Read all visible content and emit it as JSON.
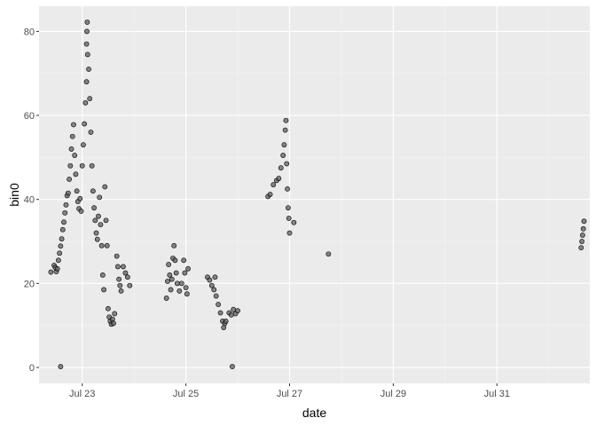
{
  "chart_data": {
    "type": "scatter",
    "title": "",
    "xlabel": "date",
    "ylabel": "bin0",
    "x_scale": "date",
    "xlim": [
      "2020-07-22 04:00",
      "2020-08-01 19:00"
    ],
    "ylim": [
      -3.8,
      86
    ],
    "x_ticks": [
      {
        "value": "2020-07-23 00:00",
        "label": "Jul 23"
      },
      {
        "value": "2020-07-25 00:00",
        "label": "Jul 25"
      },
      {
        "value": "2020-07-27 00:00",
        "label": "Jul 27"
      },
      {
        "value": "2020-07-29 00:00",
        "label": "Jul 29"
      },
      {
        "value": "2020-07-31 00:00",
        "label": "Jul 31"
      }
    ],
    "y_ticks": [
      {
        "value": 0,
        "label": "0"
      },
      {
        "value": 20,
        "label": "20"
      },
      {
        "value": 40,
        "label": "40"
      },
      {
        "value": 60,
        "label": "60"
      },
      {
        "value": 80,
        "label": "80"
      }
    ],
    "grid": true,
    "legend": "none",
    "colors": {
      "panel_bg": "#ebebeb",
      "grid_major": "#ffffff",
      "grid_minor": "#f5f5f5",
      "point_fill": "#5f5f5f",
      "point_stroke": "#000000"
    },
    "series": [
      {
        "points": [
          [
            "2020-07-22 09:30",
            22.7
          ],
          [
            "2020-07-22 11:00",
            24.3
          ],
          [
            "2020-07-22 11:30",
            23.8
          ],
          [
            "2020-07-22 12:00",
            22.8
          ],
          [
            "2020-07-22 12:30",
            23.5
          ],
          [
            "2020-07-22 13:00",
            25.5
          ],
          [
            "2020-07-22 13:30",
            27.2
          ],
          [
            "2020-07-22 14:00",
            28.9
          ],
          [
            "2020-07-22 14:00",
            0.2
          ],
          [
            "2020-07-22 14:30",
            30.6
          ],
          [
            "2020-07-22 15:00",
            32.8
          ],
          [
            "2020-07-22 15:30",
            34.6
          ],
          [
            "2020-07-22 16:00",
            36.8
          ],
          [
            "2020-07-22 16:30",
            38.7
          ],
          [
            "2020-07-22 17:00",
            40.9
          ],
          [
            "2020-07-22 17:30",
            41.5
          ],
          [
            "2020-07-22 18:00",
            44.8
          ],
          [
            "2020-07-22 18:30",
            48.0
          ],
          [
            "2020-07-22 19:00",
            52.0
          ],
          [
            "2020-07-22 19:30",
            55.0
          ],
          [
            "2020-07-22 20:00",
            57.8
          ],
          [
            "2020-07-22 20:30",
            50.5
          ],
          [
            "2020-07-22 21:00",
            46.0
          ],
          [
            "2020-07-22 21:30",
            42.0
          ],
          [
            "2020-07-22 22:00",
            39.5
          ],
          [
            "2020-07-22 22:30",
            37.8
          ],
          [
            "2020-07-22 23:00",
            40.2
          ],
          [
            "2020-07-22 23:30",
            37.2
          ],
          [
            "2020-07-23 00:00",
            48.0
          ],
          [
            "2020-07-23 00:30",
            53.0
          ],
          [
            "2020-07-23 01:00",
            58.0
          ],
          [
            "2020-07-23 01:30",
            63.0
          ],
          [
            "2020-07-23 02:00",
            68.0
          ],
          [
            "2020-07-23 02:30",
            74.5
          ],
          [
            "2020-07-23 02:00",
            77.0
          ],
          [
            "2020-07-23 02:10",
            80.0
          ],
          [
            "2020-07-23 02:20",
            82.2
          ],
          [
            "2020-07-23 03:00",
            71.0
          ],
          [
            "2020-07-23 03:30",
            64.0
          ],
          [
            "2020-07-23 04:00",
            56.0
          ],
          [
            "2020-07-23 04:30",
            48.0
          ],
          [
            "2020-07-23 05:00",
            42.0
          ],
          [
            "2020-07-23 05:30",
            38.0
          ],
          [
            "2020-07-23 06:00",
            35.0
          ],
          [
            "2020-07-23 06:30",
            32.0
          ],
          [
            "2020-07-23 07:00",
            30.5
          ],
          [
            "2020-07-23 07:30",
            36.0
          ],
          [
            "2020-07-23 08:00",
            40.5
          ],
          [
            "2020-07-23 08:30",
            34.0
          ],
          [
            "2020-07-23 09:00",
            29.0
          ],
          [
            "2020-07-23 09:30",
            22.0
          ],
          [
            "2020-07-23 10:00",
            18.5
          ],
          [
            "2020-07-23 10:30",
            43.0
          ],
          [
            "2020-07-23 11:00",
            35.0
          ],
          [
            "2020-07-23 11:30",
            29.0
          ],
          [
            "2020-07-23 12:00",
            14.0
          ],
          [
            "2020-07-23 12:30",
            12.0
          ],
          [
            "2020-07-23 13:00",
            11.0
          ],
          [
            "2020-07-23 13:30",
            10.3
          ],
          [
            "2020-07-23 14:00",
            11.5
          ],
          [
            "2020-07-23 14:30",
            10.5
          ],
          [
            "2020-07-23 15:00",
            12.8
          ],
          [
            "2020-07-23 16:00",
            26.5
          ],
          [
            "2020-07-23 16:30",
            24.0
          ],
          [
            "2020-07-23 17:00",
            21.0
          ],
          [
            "2020-07-23 17:30",
            19.5
          ],
          [
            "2020-07-23 18:00",
            18.2
          ],
          [
            "2020-07-23 19:00",
            24.0
          ],
          [
            "2020-07-23 20:00",
            22.5
          ],
          [
            "2020-07-23 21:00",
            21.5
          ],
          [
            "2020-07-23 22:00",
            19.5
          ],
          [
            "2020-07-24 15:00",
            16.5
          ],
          [
            "2020-07-24 15:30",
            20.5
          ],
          [
            "2020-07-24 16:00",
            24.5
          ],
          [
            "2020-07-24 16:30",
            22.0
          ],
          [
            "2020-07-24 17:00",
            18.5
          ],
          [
            "2020-07-24 17:30",
            21.0
          ],
          [
            "2020-07-24 18:00",
            26.0
          ],
          [
            "2020-07-24 18:30",
            29.0
          ],
          [
            "2020-07-24 19:00",
            25.5
          ],
          [
            "2020-07-24 19:30",
            22.5
          ],
          [
            "2020-07-24 20:00",
            20.0
          ],
          [
            "2020-07-24 21:00",
            18.2
          ],
          [
            "2020-07-24 22:00",
            20.0
          ],
          [
            "2020-07-24 23:00",
            25.5
          ],
          [
            "2020-07-24 23:30",
            22.5
          ],
          [
            "2020-07-25 00:00",
            19.0
          ],
          [
            "2020-07-25 00:30",
            17.5
          ],
          [
            "2020-07-25 01:00",
            23.5
          ],
          [
            "2020-07-25 10:00",
            21.5
          ],
          [
            "2020-07-25 11:00",
            20.8
          ],
          [
            "2020-07-25 12:00",
            19.5
          ],
          [
            "2020-07-25 13:00",
            18.5
          ],
          [
            "2020-07-25 13:30",
            21.5
          ],
          [
            "2020-07-25 14:00",
            17.0
          ],
          [
            "2020-07-25 15:00",
            15.0
          ],
          [
            "2020-07-25 16:00",
            13.0
          ],
          [
            "2020-07-25 17:00",
            11.0
          ],
          [
            "2020-07-25 17:30",
            9.5
          ],
          [
            "2020-07-25 18:00",
            10.5
          ],
          [
            "2020-07-25 18:30",
            11.0
          ],
          [
            "2020-07-25 20:00",
            13.0
          ],
          [
            "2020-07-25 21:00",
            12.5
          ],
          [
            "2020-07-25 21:30",
            0.2
          ],
          [
            "2020-07-25 22:00",
            13.8
          ],
          [
            "2020-07-25 23:00",
            12.8
          ],
          [
            "2020-07-26 00:00",
            13.5
          ],
          [
            "2020-07-26 14:00",
            40.7
          ],
          [
            "2020-07-26 15:00",
            41.2
          ],
          [
            "2020-07-26 16:30",
            43.5
          ],
          [
            "2020-07-26 18:00",
            44.5
          ],
          [
            "2020-07-26 19:00",
            45.0
          ],
          [
            "2020-07-26 20:00",
            47.5
          ],
          [
            "2020-07-26 21:00",
            50.5
          ],
          [
            "2020-07-26 21:30",
            53.0
          ],
          [
            "2020-07-26 22:00",
            56.5
          ],
          [
            "2020-07-26 22:20",
            58.8
          ],
          [
            "2020-07-26 22:40",
            48.5
          ],
          [
            "2020-07-26 23:00",
            42.5
          ],
          [
            "2020-07-26 23:20",
            38.0
          ],
          [
            "2020-07-26 23:40",
            35.5
          ],
          [
            "2020-07-27 00:00",
            32.0
          ],
          [
            "2020-07-27 02:00",
            34.5
          ],
          [
            "2020-07-27 18:00",
            27.0
          ],
          [
            "2020-08-01 15:00",
            28.5
          ],
          [
            "2020-08-01 15:20",
            30.0
          ],
          [
            "2020-08-01 15:40",
            31.5
          ],
          [
            "2020-08-01 16:00",
            33.0
          ],
          [
            "2020-08-01 16:20",
            34.8
          ]
        ]
      }
    ]
  }
}
